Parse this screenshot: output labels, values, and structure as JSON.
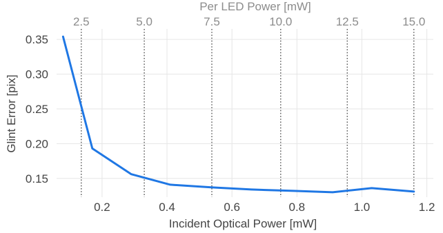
{
  "chart_data": {
    "type": "line",
    "xlabel": "Incident Optical Power [mW]",
    "ylabel": "Glint Error [pix]",
    "x2label": "Per LED Power [mW]",
    "xlim": [
      0.06,
      1.22
    ],
    "ylim": [
      0.123,
      0.365
    ],
    "xticks": [
      0.2,
      0.4,
      0.6,
      0.8,
      1.0,
      1.2
    ],
    "xtick_labels": [
      "0.2",
      "0.4",
      "0.6",
      "0.8",
      "1.0",
      "1.2"
    ],
    "yticks": [
      0.15,
      0.2,
      0.25,
      0.3,
      0.35
    ],
    "ytick_labels": [
      "0.15",
      "0.20",
      "0.25",
      "0.30",
      "0.35"
    ],
    "top_ticks_x": [
      0.136,
      0.33,
      0.538,
      0.75,
      0.955,
      1.16
    ],
    "top_tick_labels": [
      "2.5",
      "5.0",
      "7.5",
      "10.0",
      "12.5",
      "15.0"
    ],
    "grid": true,
    "series": [
      {
        "x": [
          0.08,
          0.17,
          0.29,
          0.41,
          0.54,
          0.66,
          0.79,
          0.91,
          1.03,
          1.16
        ],
        "y": [
          0.354,
          0.193,
          0.156,
          0.141,
          0.137,
          0.134,
          0.132,
          0.13,
          0.136,
          0.131
        ]
      }
    ],
    "colors": {
      "line": "#1f77e4",
      "grid": "#e6e6e6",
      "ref_line": "#555555"
    }
  }
}
